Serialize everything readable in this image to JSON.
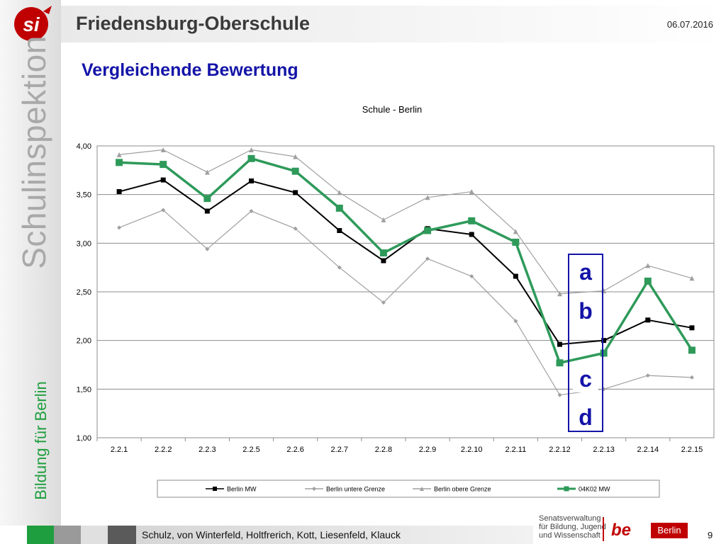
{
  "header": {
    "logo_text": "si",
    "school_name": "Friedensburg-Oberschule",
    "date": "06.07.2016"
  },
  "sidebar": {
    "vertical_title": "Schulinspektion",
    "vertical_subtitle": "Bildung für Berlin"
  },
  "section_title": "Vergleichende Bewertung",
  "overlay_letters": [
    "a",
    "b",
    "c",
    "d"
  ],
  "footer": {
    "authors": "Schulz, von Winterfeld, Holtfrerich, Kott, Liesenfeld, Klauck",
    "page_number": "9",
    "senat_text": [
      "Senatsverwaltung",
      "für Bildung, Jugend",
      "und Wissenschaft"
    ],
    "be_logo": "be",
    "berlin_badge": "Berlin"
  },
  "chart_data": {
    "type": "line",
    "title": "Schule - Berlin",
    "xlabel": "",
    "ylabel": "",
    "categories": [
      "2.2.1",
      "2.2.2",
      "2.2.3",
      "2.2.5",
      "2.2.6",
      "2.2.7",
      "2.2.8",
      "2.2.9",
      "2.2.10",
      "2.2.11",
      "2.2.12",
      "2.2.13",
      "2.2.14",
      "2.2.15"
    ],
    "ylim": [
      1.0,
      4.0
    ],
    "yticks": [
      "1,00",
      "1,50",
      "2,00",
      "2,50",
      "3,00",
      "3,50",
      "4,00"
    ],
    "grid": true,
    "legend_position": "bottom",
    "series": [
      {
        "name": "Berlin MW",
        "color": "#000000",
        "marker": "square",
        "values": [
          3.53,
          3.65,
          3.33,
          3.64,
          3.52,
          3.13,
          2.82,
          3.15,
          3.09,
          2.66,
          1.96,
          2.0,
          2.21,
          2.13
        ]
      },
      {
        "name": "Berlin untere Grenze",
        "color": "#a0a0a0",
        "marker": "diamond",
        "values": [
          3.16,
          3.34,
          2.94,
          3.33,
          3.15,
          2.75,
          2.39,
          2.84,
          2.66,
          2.2,
          1.44,
          1.5,
          1.64,
          1.62
        ]
      },
      {
        "name": "Berlin obere Grenze",
        "color": "#a0a0a0",
        "marker": "triangle",
        "values": [
          3.91,
          3.96,
          3.73,
          3.96,
          3.89,
          3.52,
          3.24,
          3.47,
          3.53,
          3.12,
          2.48,
          2.51,
          2.77,
          2.64
        ]
      },
      {
        "name": "04K02 MW",
        "color": "#2e9a5a",
        "marker": "square",
        "values": [
          3.83,
          3.81,
          3.46,
          3.87,
          3.74,
          3.36,
          2.9,
          3.13,
          3.23,
          3.01,
          1.77,
          1.87,
          2.61,
          1.9
        ]
      }
    ]
  }
}
